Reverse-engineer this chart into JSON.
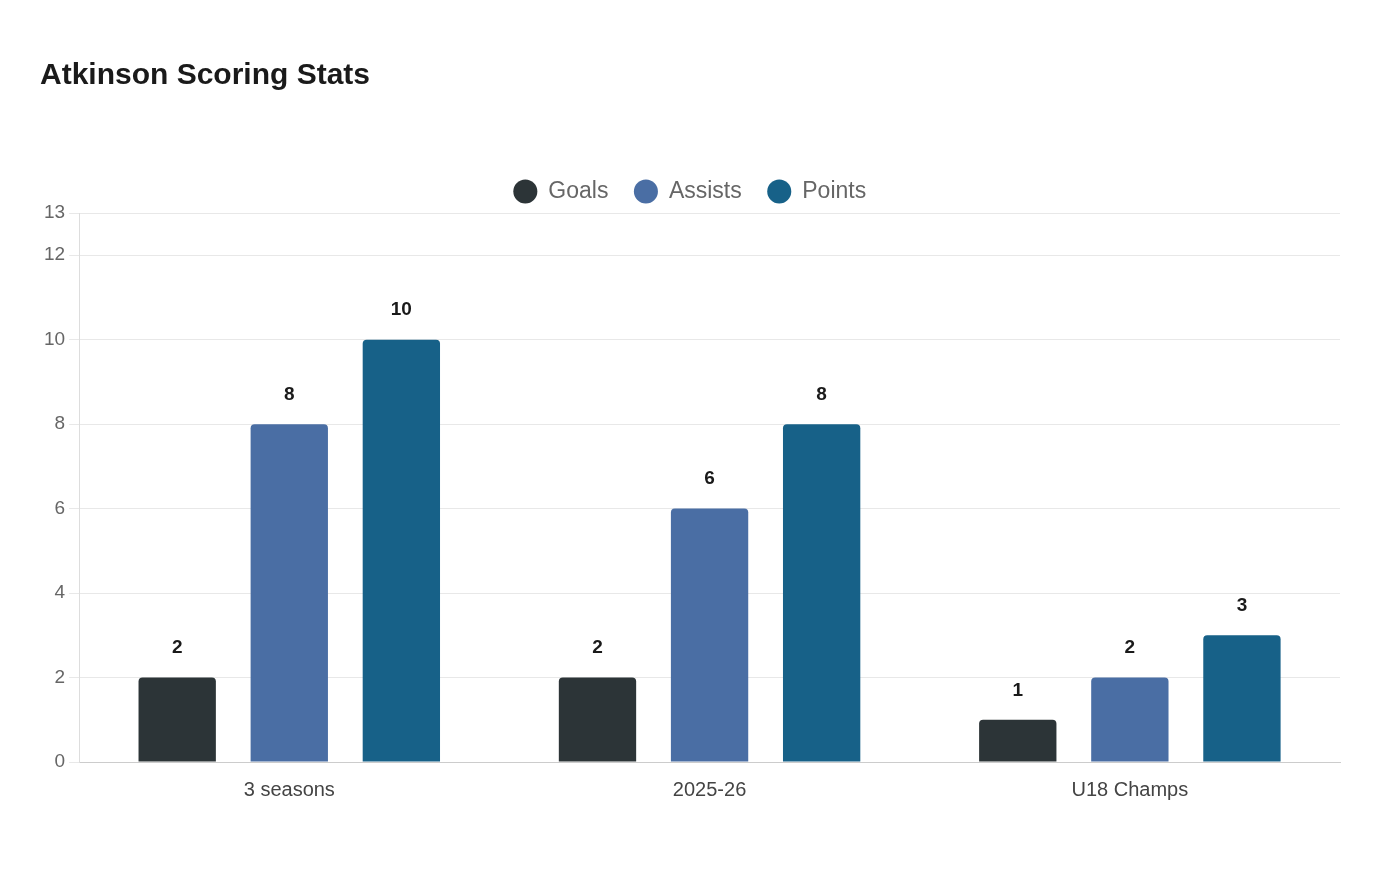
{
  "chart_data": {
    "type": "bar",
    "title": "Atkinson Scoring Stats",
    "categories": [
      "3 seasons",
      "2025-26",
      "U18 Champs"
    ],
    "series": [
      {
        "name": "Goals",
        "color": "#2c3437",
        "values": [
          2,
          2,
          1
        ]
      },
      {
        "name": "Assists",
        "color": "#4a6ea4",
        "values": [
          8,
          6,
          2
        ]
      },
      {
        "name": "Points",
        "color": "#176188",
        "values": [
          10,
          8,
          3
        ]
      }
    ],
    "ylim": [
      0,
      13
    ],
    "yticks": [
      0,
      2,
      4,
      6,
      8,
      10,
      12,
      13
    ],
    "grid": "y",
    "legend": "top",
    "data_labels": true
  }
}
